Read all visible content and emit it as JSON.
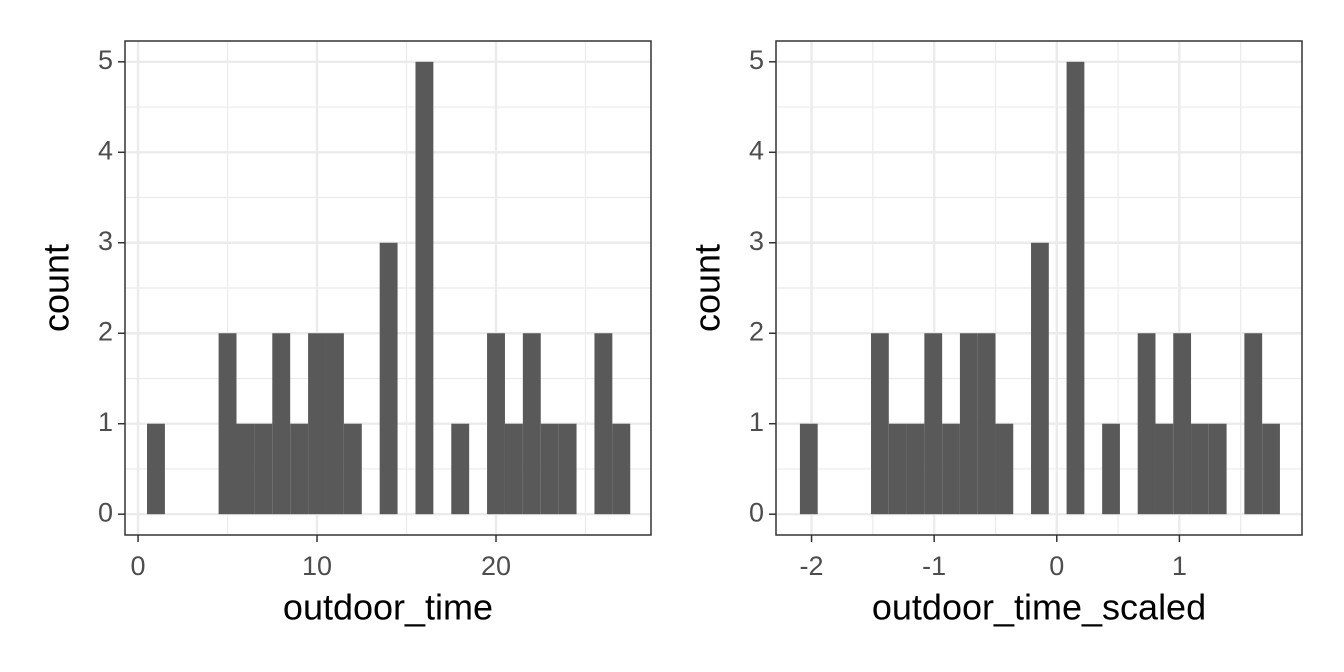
{
  "chart_data": [
    {
      "type": "histogram",
      "x_label": "outdoor_time",
      "y_label": "count",
      "color": "#595959",
      "grid": true,
      "bins": [
        0.5,
        1.5,
        2.5,
        3.5,
        4.5,
        5.5,
        6.5,
        7.5,
        8.5,
        9.5,
        10.5,
        11.5,
        12.5,
        13.5,
        14.5,
        15.5,
        16.5,
        17.5,
        18.5,
        19.5,
        20.5,
        21.5,
        22.5,
        23.5,
        24.5,
        25.5,
        26.5,
        27.5
      ],
      "values": [
        1,
        0,
        0,
        0,
        2,
        1,
        1,
        2,
        1,
        2,
        2,
        1,
        0,
        3,
        0,
        5,
        0,
        1,
        0,
        2,
        1,
        2,
        1,
        1,
        0,
        2,
        1
      ],
      "xlim": [
        -0.73,
        28.66
      ],
      "xticks": [
        0,
        10,
        20
      ],
      "ylim": [
        -0.23,
        5.23
      ],
      "yticks": [
        0,
        1,
        2,
        3,
        4,
        5
      ]
    },
    {
      "type": "histogram",
      "x_label": "outdoor_time_scaled",
      "y_label": "count",
      "color": "#595959",
      "grid": true,
      "bins": [
        -2.095,
        -1.95,
        -1.805,
        -1.66,
        -1.515,
        -1.37,
        -1.225,
        -1.08,
        -0.935,
        -0.79,
        -0.645,
        -0.5,
        -0.355,
        -0.21,
        -0.065,
        0.08,
        0.225,
        0.37,
        0.515,
        0.66,
        0.805,
        0.95,
        1.095,
        1.24,
        1.385,
        1.53,
        1.675,
        1.82
      ],
      "values": [
        1,
        0,
        0,
        0,
        2,
        1,
        1,
        2,
        1,
        2,
        2,
        1,
        0,
        3,
        0,
        5,
        0,
        1,
        0,
        2,
        1,
        2,
        1,
        1,
        0,
        2,
        1
      ],
      "xlim": [
        -2.29,
        2.0
      ],
      "xticks": [
        -2,
        -1,
        0,
        1
      ],
      "ylim": [
        -0.23,
        5.23
      ],
      "yticks": [
        0,
        1,
        2,
        3,
        4,
        5
      ]
    }
  ]
}
